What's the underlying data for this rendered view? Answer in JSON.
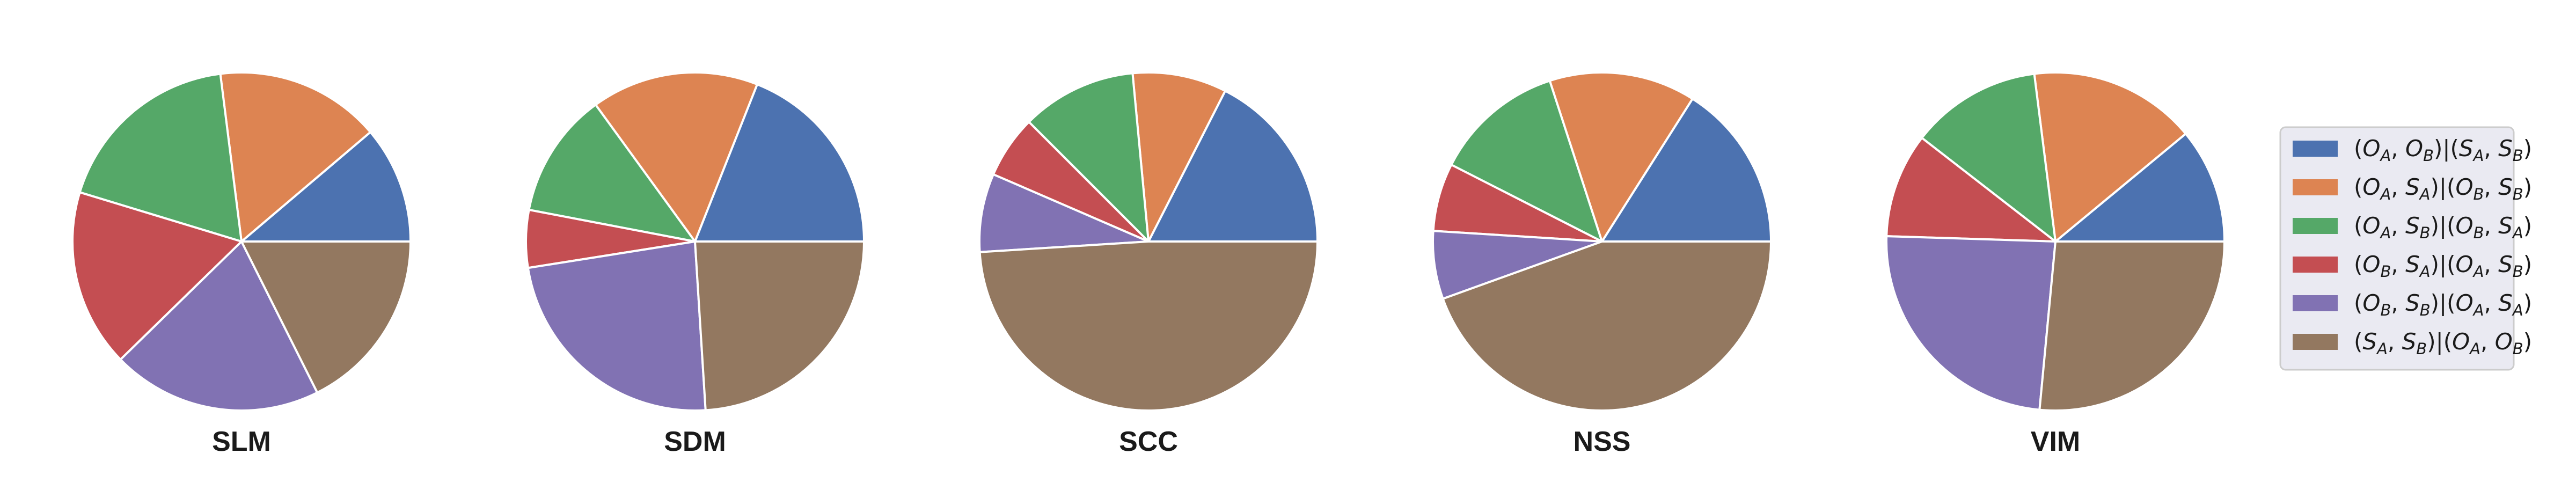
{
  "chart_data": {
    "type": "pie",
    "legend_position": "right",
    "start_angle_deg": 0,
    "direction": "counterclockwise",
    "categories": [
      "(O_A, O_B) | (S_A, S_B)",
      "(O_A, S_A) | (O_B, S_B)",
      "(O_A, S_B) | (O_B, S_A)",
      "(O_B, S_A) | (O_A, S_B)",
      "(O_B, S_B) | (O_A, S_A)",
      "(S_A, S_B) | (O_A, O_B)"
    ],
    "legend_labels": [
      [
        "(",
        "O",
        "A",
        ", ",
        "O",
        "B",
        ")|(",
        "S",
        "A",
        ", ",
        "S",
        "B",
        ")"
      ],
      [
        "(",
        "O",
        "A",
        ", ",
        "S",
        "A",
        ")|(",
        "O",
        "B",
        ", ",
        "S",
        "B",
        ")"
      ],
      [
        "(",
        "O",
        "A",
        ", ",
        "S",
        "B",
        ")|(",
        "O",
        "B",
        ", ",
        "S",
        "A",
        ")"
      ],
      [
        "(",
        "O",
        "B",
        ", ",
        "S",
        "A",
        ")|(",
        "O",
        "A",
        ", ",
        "S",
        "B",
        ")"
      ],
      [
        "(",
        "O",
        "B",
        ", ",
        "S",
        "B",
        ")|(",
        "O",
        "A",
        ", ",
        "S",
        "A",
        ")"
      ],
      [
        "(",
        "S",
        "A",
        ", ",
        "S",
        "B",
        ")|(",
        "O",
        "A",
        ", ",
        "O",
        "B",
        ")"
      ]
    ],
    "colors": [
      "#4c72b0",
      "#dd8452",
      "#55a868",
      "#c44e52",
      "#8172b3",
      "#937860"
    ],
    "pies": [
      {
        "title": "SLM",
        "values": [
          11.2,
          15.8,
          18.3,
          17.0,
          20.1,
          17.6
        ]
      },
      {
        "title": "SDM",
        "values": [
          19.0,
          16.0,
          12.0,
          5.5,
          23.5,
          24.0
        ]
      },
      {
        "title": "SCC",
        "values": [
          17.5,
          9.0,
          11.0,
          6.0,
          7.5,
          49.0
        ]
      },
      {
        "title": "NSS",
        "values": [
          16.0,
          14.0,
          12.5,
          6.5,
          6.5,
          44.5
        ]
      },
      {
        "title": "VIM",
        "values": [
          11.0,
          16.0,
          12.5,
          10.0,
          24.0,
          26.5
        ]
      }
    ]
  }
}
